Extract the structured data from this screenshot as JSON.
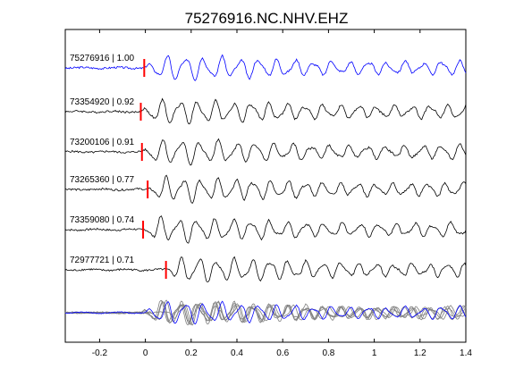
{
  "chart_data": {
    "type": "line",
    "title": "75276916.NC.NHV.EHZ",
    "xlim": [
      -0.35,
      1.4
    ],
    "xticks": [
      -0.2,
      0,
      0.2,
      0.4,
      0.6,
      0.8,
      1,
      1.2,
      1.4
    ],
    "xtick_labels": [
      "-0.2",
      "0",
      "0.2",
      "0.4",
      "0.6",
      "0.8",
      "1",
      "1.2",
      "1.4"
    ],
    "grid": false,
    "series": [
      {
        "name": "75276916 | 1.00",
        "pick": -0.005,
        "color": "#0000ff",
        "freq": 12.5,
        "phase": 0.0
      },
      {
        "name": "73354920 | 0.92",
        "pick": -0.02,
        "color": "#000000",
        "freq": 12.8,
        "phase": 0.4
      },
      {
        "name": "73200106 | 0.91",
        "pick": -0.015,
        "color": "#000000",
        "freq": 12.3,
        "phase": 0.9
      },
      {
        "name": "73265360 | 0.77",
        "pick": 0.01,
        "color": "#000000",
        "freq": 13.1,
        "phase": 1.3
      },
      {
        "name": "73359080 | 0.74",
        "pick": -0.01,
        "color": "#000000",
        "freq": 12.6,
        "phase": 1.8
      },
      {
        "name": "72977721 | 0.71",
        "pick": 0.09,
        "color": "#000000",
        "freq": 12.9,
        "phase": 2.4
      }
    ],
    "stack": {
      "trace_color": "#808080",
      "reference_color": "#0000ff"
    },
    "pick_color": "#ff0000"
  }
}
